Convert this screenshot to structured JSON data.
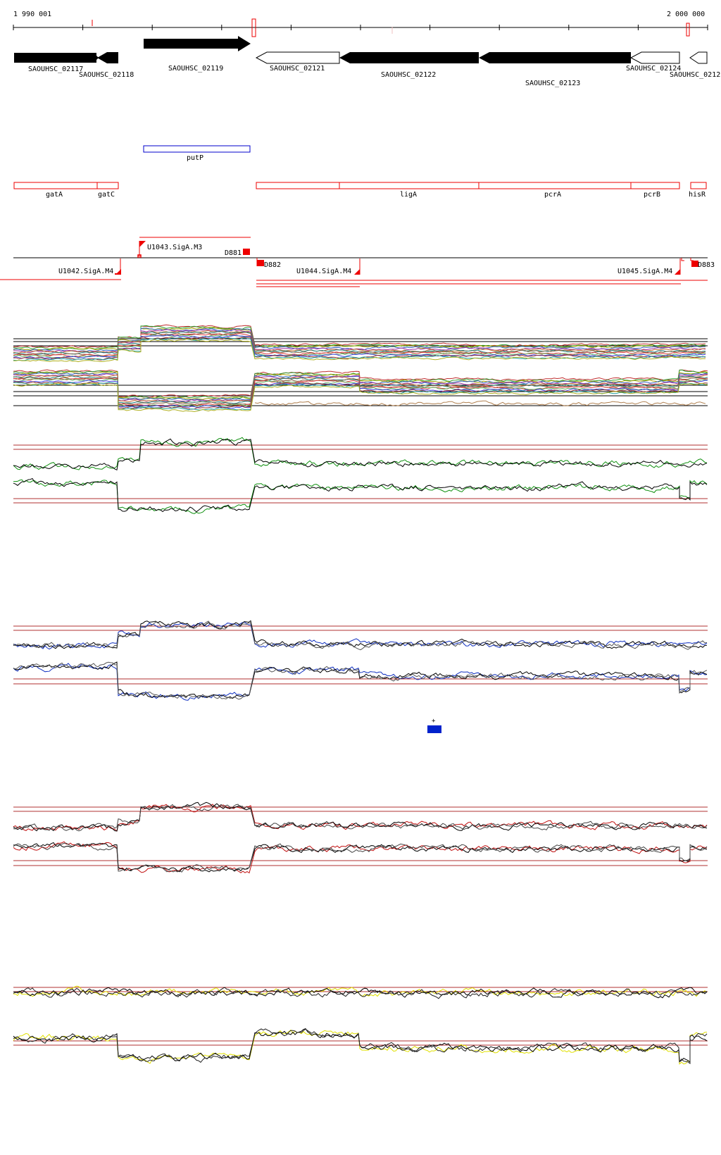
{
  "ruler": {
    "start_label": "1 990 001",
    "end_label": "2 000 000"
  },
  "genes": [
    {
      "id": "SAOUHSC_02117",
      "label": "SAOUHSC_02117",
      "strand": "+",
      "filled": true
    },
    {
      "id": "SAOUHSC_02118",
      "label": "SAOUHSC_02118",
      "strand": "-",
      "filled": true
    },
    {
      "id": "SAOUHSC_02119",
      "label": "SAOUHSC_02119",
      "strand": "+",
      "filled": true
    },
    {
      "id": "SAOUHSC_02121",
      "label": "SAOUHSC_02121",
      "strand": "-",
      "filled": false
    },
    {
      "id": "SAOUHSC_02122",
      "label": "SAOUHSC_02122",
      "strand": "-",
      "filled": true
    },
    {
      "id": "SAOUHSC_02123",
      "label": "SAOUHSC_02123",
      "strand": "-",
      "filled": true
    },
    {
      "id": "SAOUHSC_02124",
      "label": "SAOUHSC_02124",
      "strand": "-",
      "filled": false
    },
    {
      "id": "SAOUHSC_02125",
      "label": "SAOUHSC_0212",
      "strand": "-",
      "filled": false
    }
  ],
  "blue_features": [
    {
      "label": "putP"
    }
  ],
  "red_features": [
    {
      "label": "gatA"
    },
    {
      "label": "gatC"
    },
    {
      "label": "ligA"
    },
    {
      "label": "pcrA"
    },
    {
      "label": "pcrB"
    },
    {
      "label": "hisR"
    }
  ],
  "transcripts": [
    {
      "label": "U1042.SigA.M4"
    },
    {
      "label": "U1043.SigA.M3"
    },
    {
      "label": "D881"
    },
    {
      "label": "D882"
    },
    {
      "label": "U1044.SigA.M4"
    },
    {
      "label": "U1045.SigA.M4"
    },
    {
      "label": "D883"
    }
  ],
  "legend": {
    "strand_label": "+",
    "color": "#0022cc"
  },
  "colors": {
    "gene_fill": "#000000",
    "feature_red": "#ee0000",
    "feature_blue": "#0000cc",
    "threshold_line": "#b03030",
    "track_green": "#109010",
    "track_blue": "#1030c0",
    "track_red": "#c01010",
    "track_yellow": "#e0e000"
  }
}
